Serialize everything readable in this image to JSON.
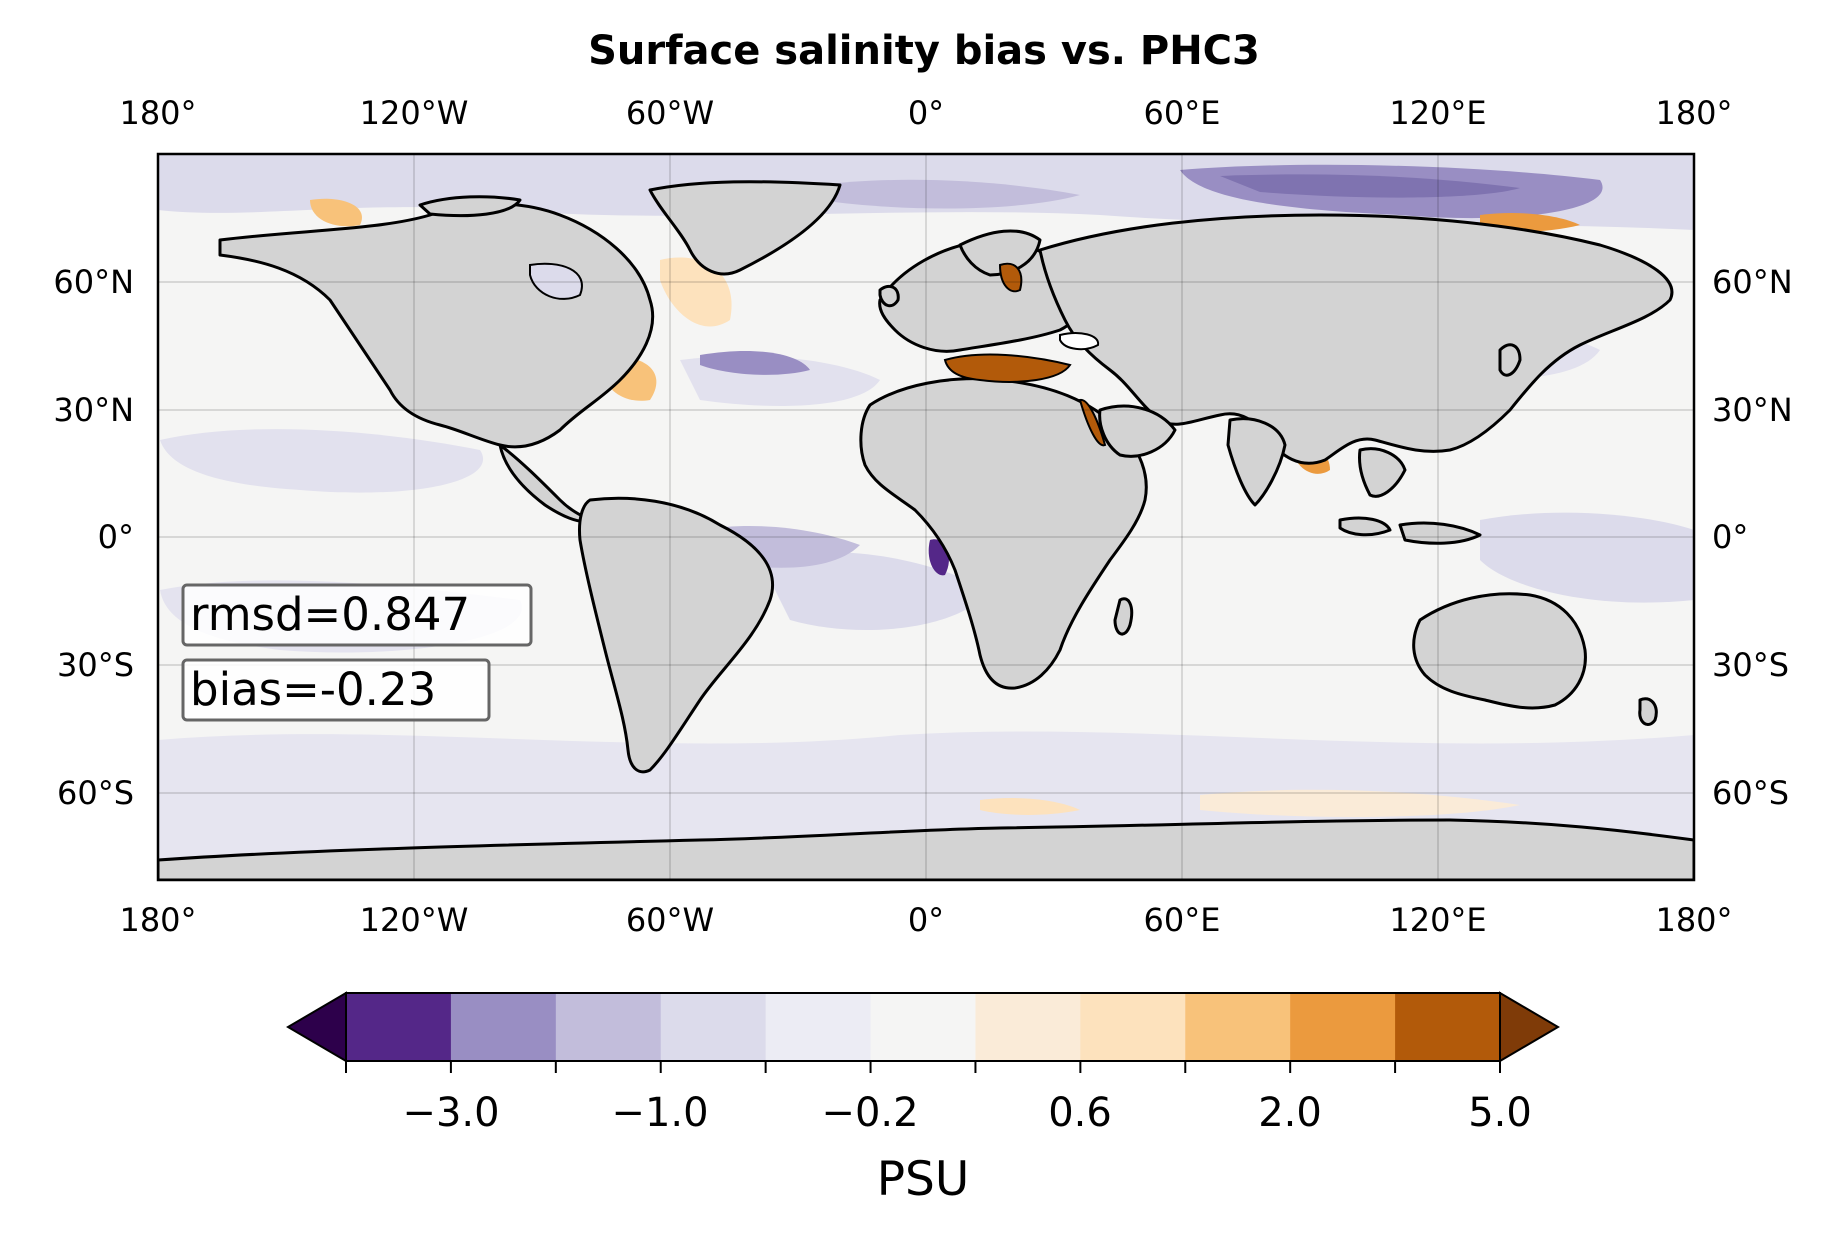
{
  "title": "Surface salinity bias vs. PHC3",
  "lon_labels": [
    "180°",
    "120°W",
    "60°W",
    "0°",
    "60°E",
    "120°E",
    "180°"
  ],
  "lat_labels": [
    "60°N",
    "30°N",
    "0°",
    "30°S",
    "60°S"
  ],
  "stats": {
    "rmsd": "rmsd=0.847",
    "bias": "bias=-0.23"
  },
  "colorbar": {
    "label": "PSU",
    "tick_labels": [
      "−3.0",
      "−1.0",
      "−0.2",
      "0.6",
      "2.0",
      "5.0"
    ],
    "colors": [
      "#542788",
      "#998ec3",
      "#c2bddb",
      "#dcdbeb",
      "#ececf4",
      "#f5f5f4",
      "#faebd8",
      "#fde2bd",
      "#f8c27a",
      "#eb9a3e",
      "#b25a0a"
    ],
    "under_color": "#2d004b",
    "over_color": "#7f3b08"
  },
  "map": {
    "projection": "PlateCarree",
    "land_color": "#d3d3d3",
    "ocean_base_color": "#f5f5f4",
    "gridlines": true
  }
}
